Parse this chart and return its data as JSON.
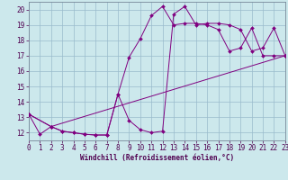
{
  "xlabel": "Windchill (Refroidissement éolien,°C)",
  "xlim": [
    0,
    23
  ],
  "ylim": [
    11.5,
    20.5
  ],
  "xticks": [
    0,
    1,
    2,
    3,
    4,
    5,
    6,
    7,
    8,
    9,
    10,
    11,
    12,
    13,
    14,
    15,
    16,
    17,
    18,
    19,
    20,
    21,
    22,
    23
  ],
  "yticks": [
    12,
    13,
    14,
    15,
    16,
    17,
    18,
    19,
    20
  ],
  "background_color": "#cce8ec",
  "line_color": "#800080",
  "grid_color": "#99bbcc",
  "line1_x": [
    0,
    1,
    2,
    3,
    4,
    5,
    6,
    7,
    8,
    9,
    10,
    11,
    12,
    13,
    14,
    15,
    16,
    17,
    18,
    19,
    20,
    21,
    22,
    23
  ],
  "line1_y": [
    13.2,
    11.9,
    12.4,
    12.1,
    12.0,
    11.9,
    11.85,
    11.85,
    14.5,
    12.8,
    12.2,
    12.0,
    12.1,
    19.7,
    20.2,
    19.0,
    19.1,
    19.1,
    19.0,
    18.7,
    17.3,
    17.5,
    18.8,
    17.0
  ],
  "line2_x": [
    0,
    2,
    3,
    4,
    5,
    6,
    7,
    8,
    9,
    10,
    11,
    12,
    13,
    14,
    15,
    16,
    17,
    18,
    19,
    20,
    21,
    22,
    23
  ],
  "line2_y": [
    13.2,
    12.4,
    12.1,
    12.0,
    11.9,
    11.85,
    11.85,
    14.5,
    16.9,
    18.1,
    19.6,
    20.2,
    19.0,
    19.1,
    19.1,
    19.0,
    18.7,
    17.3,
    17.5,
    18.8,
    17.0,
    17.0,
    17.0
  ],
  "line3_x": [
    0,
    2,
    23
  ],
  "line3_y": [
    13.2,
    12.4,
    17.0
  ],
  "font_size": 5.5,
  "markersize": 2.0
}
